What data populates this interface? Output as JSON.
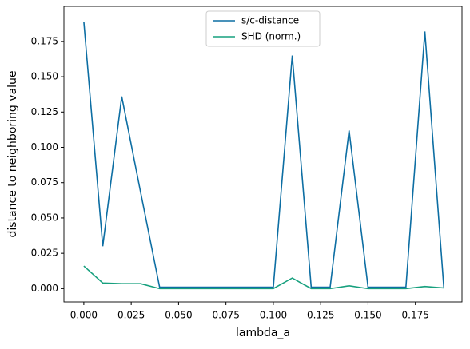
{
  "chart_data": {
    "type": "line",
    "x_label": "lambda_a",
    "y_label": "distance to neighboring value",
    "x": [
      0,
      0.01,
      0.02,
      0.03,
      0.04,
      0.05,
      0.06,
      0.07,
      0.08,
      0.09,
      0.1,
      0.11,
      0.12,
      0.13,
      0.14,
      0.15,
      0.16,
      0.17,
      0.18,
      0.19
    ],
    "series": [
      {
        "name": "s/c-distance",
        "color": "#0d6ea3",
        "values": [
          0.189,
          0.03,
          0.136,
          0.068,
          0.001,
          0.001,
          0.001,
          0.001,
          0.001,
          0.001,
          0.001,
          0.165,
          0.001,
          0.001,
          0.112,
          0.001,
          0.001,
          0.001,
          0.182,
          0.001
        ]
      },
      {
        "name": "SHD (norm.)",
        "color": "#17a07e",
        "values": [
          0.016,
          0.004,
          0.0035,
          0.0035,
          0,
          0,
          0,
          0,
          0,
          0,
          0,
          0.0075,
          0,
          0,
          0.002,
          0,
          0,
          0,
          0.0015,
          0.0005
        ]
      }
    ],
    "xlim": [
      -0.0105,
      0.1996
    ],
    "ylim": [
      -0.0094,
      0.1998
    ],
    "xticks": [
      {
        "value": 0,
        "label": "0.000"
      },
      {
        "value": 0.025,
        "label": "0.025"
      },
      {
        "value": 0.05,
        "label": "0.050"
      },
      {
        "value": 0.075,
        "label": "0.075"
      },
      {
        "value": 0.1,
        "label": "0.100"
      },
      {
        "value": 0.125,
        "label": "0.125"
      },
      {
        "value": 0.15,
        "label": "0.150"
      },
      {
        "value": 0.175,
        "label": "0.175"
      }
    ],
    "yticks": [
      {
        "value": 0,
        "label": "0.000"
      },
      {
        "value": 0.025,
        "label": "0.025"
      },
      {
        "value": 0.05,
        "label": "0.050"
      },
      {
        "value": 0.075,
        "label": "0.075"
      },
      {
        "value": 0.1,
        "label": "0.100"
      },
      {
        "value": 0.125,
        "label": "0.125"
      },
      {
        "value": 0.15,
        "label": "0.150"
      },
      {
        "value": 0.175,
        "label": "0.175"
      }
    ],
    "legend": "upper center"
  }
}
